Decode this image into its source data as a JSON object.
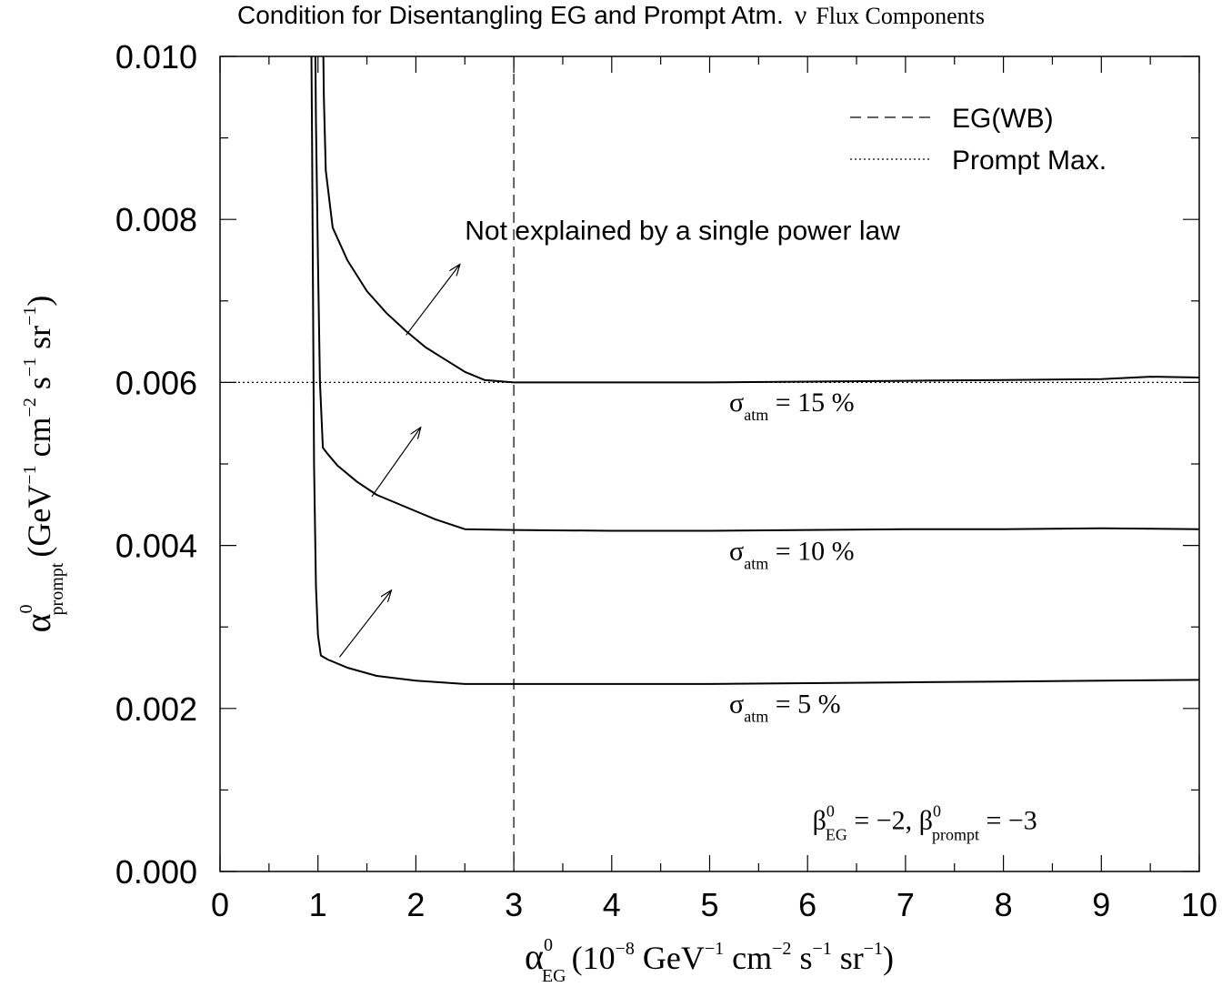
{
  "chart_data": {
    "type": "line",
    "title": {
      "main": "Condition for Disentangling EG and Prompt Atm.",
      "nu": "ν",
      "tail": "Flux Components"
    },
    "xlabel": {
      "sym": "α",
      "sup": "0",
      "sub": "EG",
      "p1": "(10",
      "p1_sup": "−8",
      "p2": " GeV",
      "p2_sup": "−1",
      "p3": " cm",
      "p3_sup": "−2",
      "p4": " s",
      "p4_sup": "−1",
      "p5": " sr",
      "p5_sup": "−1",
      "p6": ")"
    },
    "ylabel": {
      "sym": "α",
      "sup": "0",
      "sub": "prompt",
      "p1": "(GeV",
      "p1_sup": "−1",
      "p2": " cm",
      "p2_sup": "−2",
      "p3": " s",
      "p3_sup": "−1",
      "p4": " sr",
      "p4_sup": "−1",
      "p5": ")"
    },
    "xlim": [
      0,
      10
    ],
    "ylim": [
      0,
      0.01
    ],
    "x_ticks": [
      "0",
      "1",
      "2",
      "3",
      "4",
      "5",
      "6",
      "7",
      "8",
      "9",
      "10"
    ],
    "y_ticks": [
      "0.000",
      "0.002",
      "0.004",
      "0.006",
      "0.008",
      "0.010"
    ],
    "grid": false,
    "legend": {
      "placement": "top-right",
      "entries": [
        {
          "label": "EG(WB)",
          "style": "dashed"
        },
        {
          "label": "Prompt Max.",
          "style": "dotted"
        }
      ]
    },
    "reference_lines": {
      "eg_wb_x": 3.0,
      "prompt_max_y": 0.006
    },
    "series": [
      {
        "label": {
          "sym": "σ",
          "sub": "atm",
          "rest": " = 15 %"
        },
        "label_at": [
          5.2,
          0.00565
        ],
        "points": [
          [
            1.05,
            0.0105
          ],
          [
            1.06,
            0.0095
          ],
          [
            1.08,
            0.0086
          ],
          [
            1.15,
            0.0079
          ],
          [
            1.3,
            0.0075
          ],
          [
            1.5,
            0.00712
          ],
          [
            1.7,
            0.00685
          ],
          [
            1.9,
            0.00663
          ],
          [
            2.1,
            0.00643
          ],
          [
            2.3,
            0.00628
          ],
          [
            2.5,
            0.00613
          ],
          [
            2.7,
            0.00603
          ],
          [
            3.0,
            0.006
          ],
          [
            3.5,
            0.006
          ],
          [
            4.0,
            0.006
          ],
          [
            5.0,
            0.006
          ],
          [
            6.0,
            0.00601
          ],
          [
            7.0,
            0.00602
          ],
          [
            8.0,
            0.00603
          ],
          [
            9.0,
            0.00604
          ],
          [
            9.5,
            0.00607
          ],
          [
            10.0,
            0.00606
          ]
        ]
      },
      {
        "label": {
          "sym": "σ",
          "sub": "atm",
          "rest": " = 10 %"
        },
        "label_at": [
          5.2,
          0.00382
        ],
        "points": [
          [
            0.97,
            0.0105
          ],
          [
            0.98,
            0.0092
          ],
          [
            1.0,
            0.0075
          ],
          [
            1.02,
            0.006
          ],
          [
            1.05,
            0.0052
          ],
          [
            1.1,
            0.00512
          ],
          [
            1.2,
            0.00498
          ],
          [
            1.4,
            0.00478
          ],
          [
            1.6,
            0.00462
          ],
          [
            1.8,
            0.00452
          ],
          [
            2.0,
            0.00442
          ],
          [
            2.2,
            0.00432
          ],
          [
            2.5,
            0.0042
          ],
          [
            3.0,
            0.00419
          ],
          [
            4.0,
            0.00418
          ],
          [
            5.0,
            0.00418
          ],
          [
            6.0,
            0.00419
          ],
          [
            7.0,
            0.0042
          ],
          [
            8.0,
            0.0042
          ],
          [
            9.0,
            0.00421
          ],
          [
            10.0,
            0.0042
          ]
        ]
      },
      {
        "label": {
          "sym": "σ",
          "sub": "atm",
          "rest": " = 5 %"
        },
        "label_at": [
          5.2,
          0.00195
        ],
        "points": [
          [
            0.93,
            0.0105
          ],
          [
            0.94,
            0.009
          ],
          [
            0.95,
            0.007
          ],
          [
            0.96,
            0.005
          ],
          [
            0.98,
            0.0035
          ],
          [
            1.0,
            0.0029
          ],
          [
            1.03,
            0.00265
          ],
          [
            1.1,
            0.0026
          ],
          [
            1.3,
            0.0025
          ],
          [
            1.6,
            0.0024
          ],
          [
            2.0,
            0.00234
          ],
          [
            2.5,
            0.0023
          ],
          [
            3.0,
            0.0023
          ],
          [
            4.0,
            0.0023
          ],
          [
            5.0,
            0.0023
          ],
          [
            6.0,
            0.00231
          ],
          [
            7.0,
            0.00232
          ],
          [
            8.0,
            0.00233
          ],
          [
            9.0,
            0.00234
          ],
          [
            10.0,
            0.00235
          ]
        ]
      }
    ],
    "annotations": {
      "top_text": "Not explained by a single power law",
      "top_text_at": [
        2.5,
        0.00775
      ],
      "arrows": [
        {
          "from": [
            1.9,
            0.00658
          ],
          "to": [
            2.45,
            0.00745
          ]
        },
        {
          "from": [
            1.55,
            0.0046
          ],
          "to": [
            2.05,
            0.00545
          ]
        },
        {
          "from": [
            1.22,
            0.00263
          ],
          "to": [
            1.75,
            0.00345
          ]
        }
      ],
      "beta_label": {
        "b1": "β",
        "b1_sup": "0",
        "b1_sub": "EG",
        "mid": " = −2, ",
        "b2": "β",
        "b2_sup": "0",
        "b2_sub": "prompt",
        "end": " = −3"
      },
      "beta_label_at": [
        6.05,
        0.00052
      ]
    }
  }
}
